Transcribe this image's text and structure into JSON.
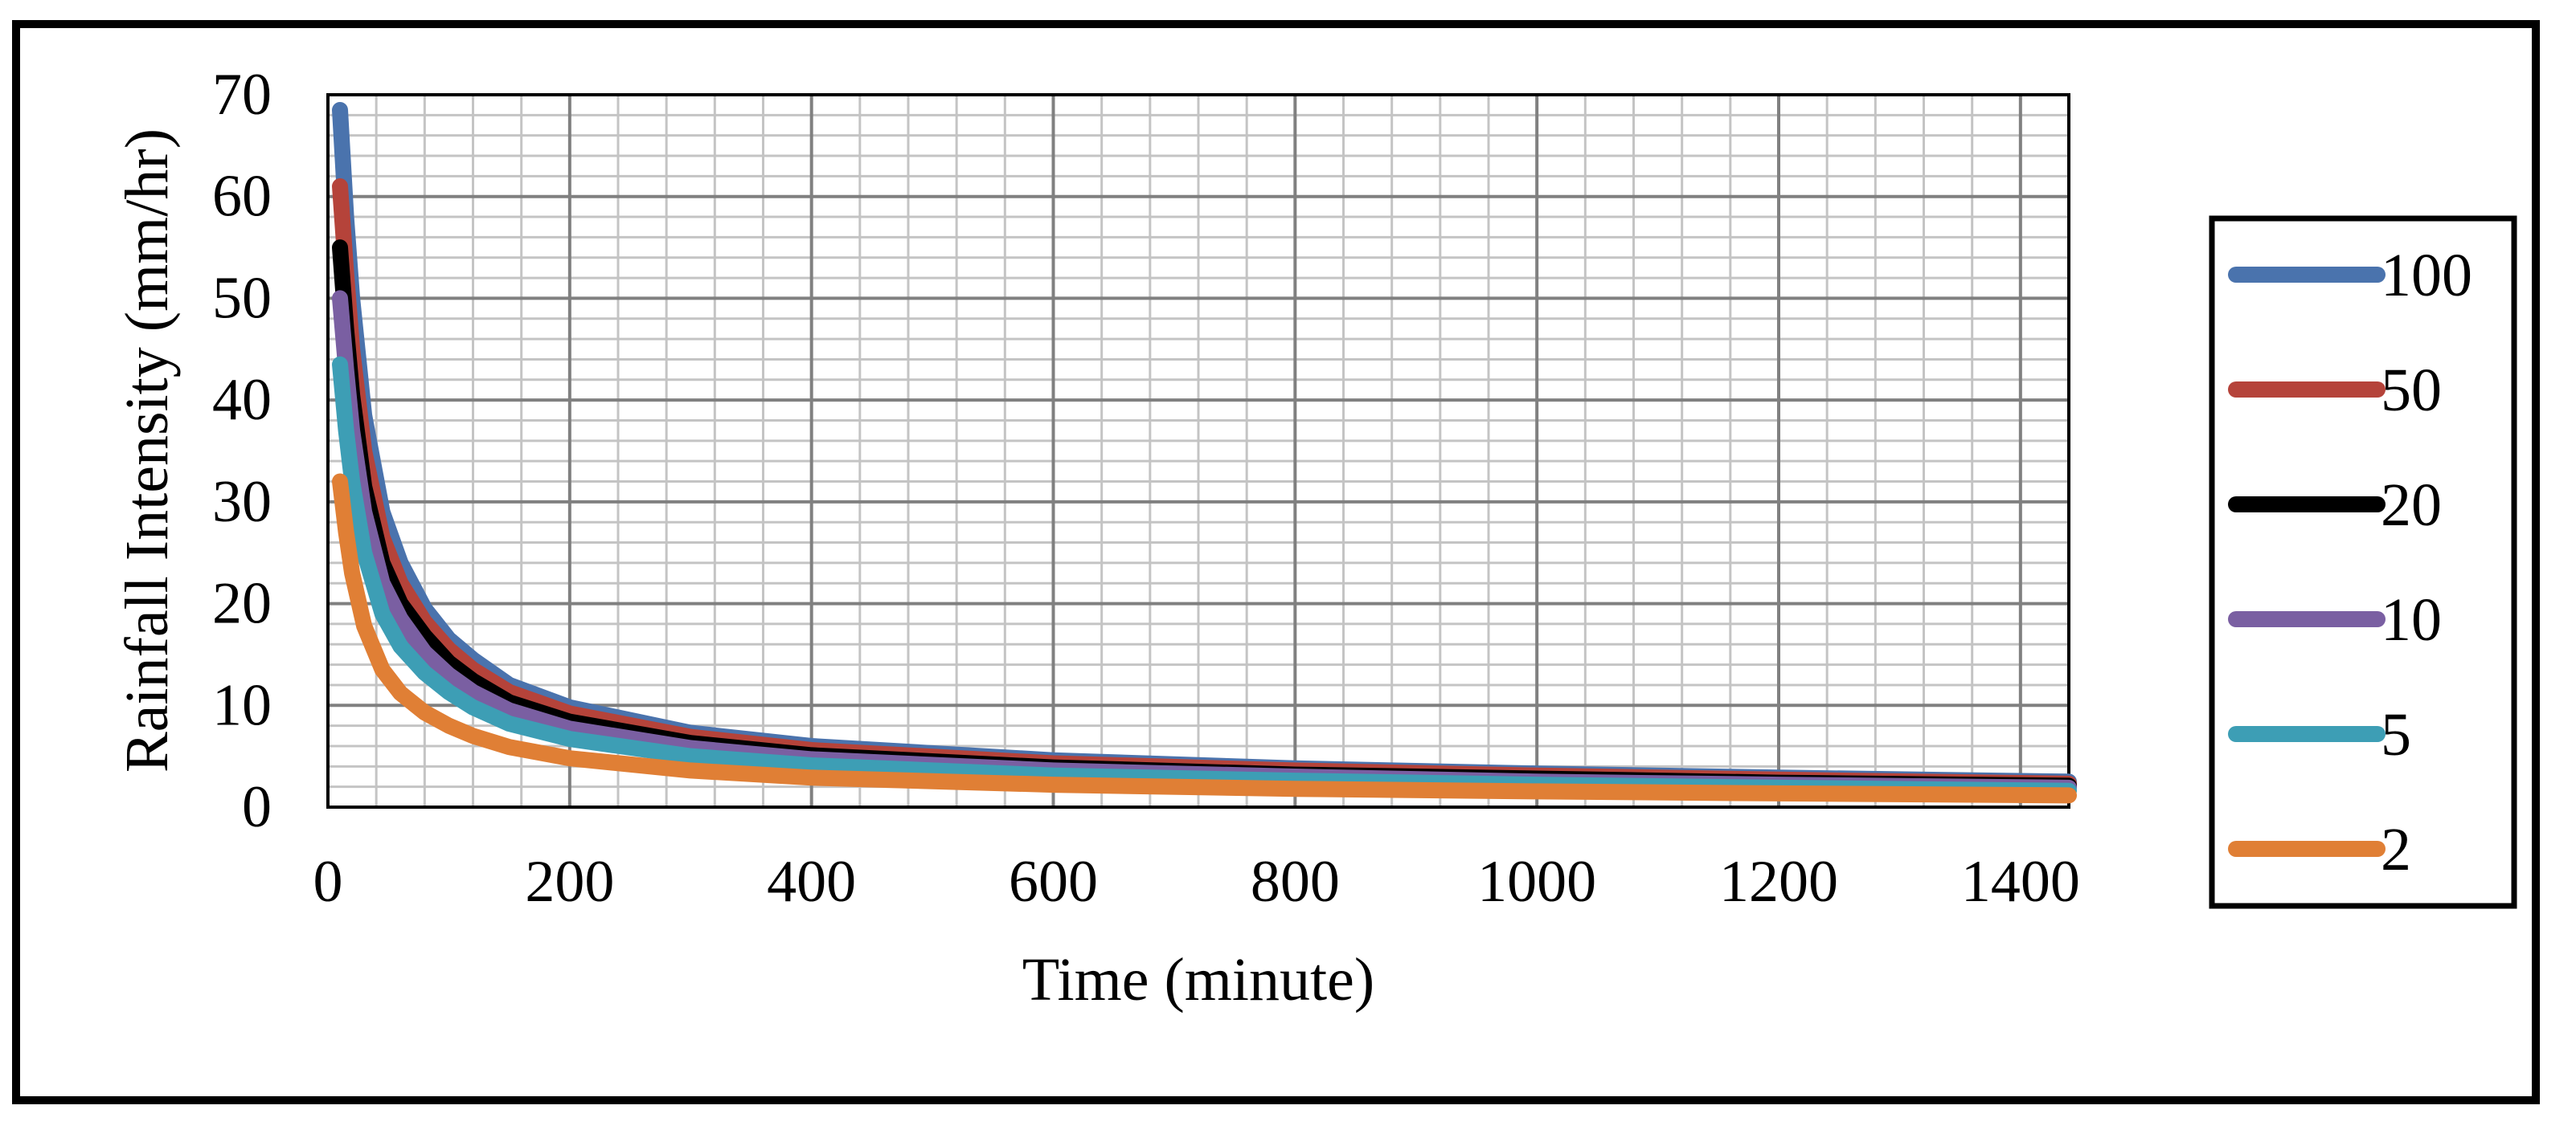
{
  "chart_data": {
    "type": "line",
    "title": "",
    "xlabel": "Time (minute)",
    "ylabel": "Rainfall Intensity (mm/hr)",
    "xlim": [
      0,
      1440
    ],
    "ylim": [
      0,
      70
    ],
    "x_ticks": [
      0,
      200,
      400,
      600,
      800,
      1000,
      1200,
      1400
    ],
    "y_ticks": [
      0,
      10,
      20,
      30,
      40,
      50,
      60,
      70
    ],
    "grid": {
      "major": true,
      "minor": true,
      "x_minor_step": 40,
      "y_minor_step": 2
    },
    "legend_position": "right",
    "x": [
      10,
      15,
      20,
      30,
      45,
      60,
      80,
      100,
      120,
      150,
      200,
      300,
      400,
      600,
      800,
      1000,
      1200,
      1440
    ],
    "series": [
      {
        "name": "100",
        "color": "#4a73ad",
        "values": [
          68.5,
          58.0,
          50.0,
          38.5,
          29.0,
          24.0,
          19.5,
          16.5,
          14.5,
          12.0,
          9.8,
          7.3,
          6.0,
          4.6,
          3.8,
          3.3,
          2.9,
          2.5
        ]
      },
      {
        "name": "50",
        "color": "#b5433a",
        "values": [
          61.0,
          52.5,
          45.0,
          35.0,
          26.5,
          22.0,
          18.2,
          15.5,
          13.5,
          11.3,
          9.2,
          6.9,
          5.6,
          4.3,
          3.6,
          3.1,
          2.7,
          2.3
        ]
      },
      {
        "name": "20",
        "color": "#000000",
        "values": [
          55.0,
          47.0,
          40.5,
          31.5,
          24.0,
          20.0,
          16.8,
          14.2,
          12.4,
          10.3,
          8.4,
          6.3,
          5.1,
          3.9,
          3.2,
          2.8,
          2.4,
          2.1
        ]
      },
      {
        "name": "10",
        "color": "#7a5fa2",
        "values": [
          50.0,
          43.0,
          37.0,
          29.0,
          22.0,
          18.5,
          15.2,
          13.0,
          11.3,
          9.5,
          7.7,
          5.8,
          4.7,
          3.6,
          3.0,
          2.5,
          2.2,
          1.9
        ]
      },
      {
        "name": "5",
        "color": "#3d9eb5",
        "values": [
          43.5,
          37.0,
          32.0,
          25.0,
          19.0,
          15.8,
          13.2,
          11.3,
          9.8,
          8.2,
          6.7,
          5.0,
          4.1,
          3.1,
          2.6,
          2.2,
          1.9,
          1.6
        ]
      },
      {
        "name": "2",
        "color": "#e07f35",
        "values": [
          32.0,
          27.0,
          23.0,
          17.8,
          13.5,
          11.2,
          9.3,
          8.0,
          7.0,
          5.9,
          4.8,
          3.6,
          2.9,
          2.2,
          1.8,
          1.55,
          1.35,
          1.15
        ]
      }
    ]
  }
}
